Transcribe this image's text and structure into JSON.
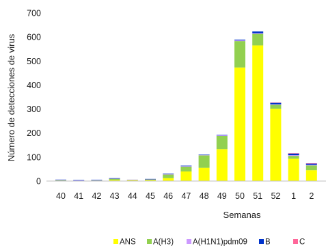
{
  "chart_data": {
    "type": "bar",
    "stacked": true,
    "title": "",
    "xlabel": "Semanas",
    "ylabel": "Número de detecciones de virus",
    "ylim": [
      0,
      700
    ],
    "yticks": [
      0,
      100,
      200,
      300,
      400,
      500,
      600,
      700
    ],
    "grid": false,
    "legend_position": "bottom",
    "categories": [
      "40",
      "41",
      "42",
      "43",
      "44",
      "45",
      "46",
      "47",
      "48",
      "49",
      "50",
      "51",
      "52",
      "1",
      "2"
    ],
    "series": [
      {
        "name": "ANS",
        "color": "#FFFF00",
        "values": [
          2,
          1,
          2,
          4,
          3,
          4,
          12,
          40,
          55,
          133,
          473,
          565,
          301,
          93,
          45
        ]
      },
      {
        "name": "A(H3)",
        "color": "#92D050",
        "values": [
          2,
          1,
          1,
          6,
          2,
          3,
          15,
          20,
          52,
          55,
          110,
          48,
          17,
          12,
          20
        ]
      },
      {
        "name": "A(H1N1)pdm09",
        "color": "#CC99FF",
        "values": [
          1,
          1,
          1,
          1,
          1,
          1,
          2,
          2,
          2,
          3,
          3,
          3,
          2,
          3,
          3
        ]
      },
      {
        "name": "B",
        "color": "#0033CC",
        "values": [
          1,
          1,
          1,
          1,
          0,
          1,
          2,
          2,
          1,
          1,
          3,
          7,
          6,
          7,
          5
        ]
      },
      {
        "name": "C",
        "color": "#FF6699",
        "values": [
          0,
          0,
          0,
          0,
          0,
          0,
          0,
          0,
          0,
          0,
          0,
          0,
          1,
          1,
          1
        ]
      }
    ]
  }
}
